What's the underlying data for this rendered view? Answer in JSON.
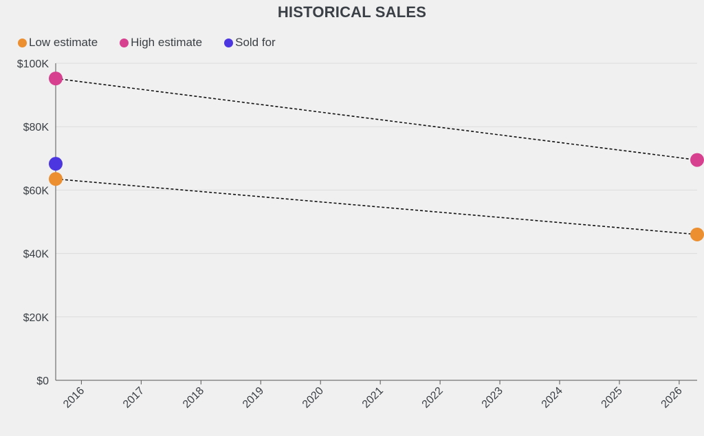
{
  "chart_data": {
    "type": "scatter",
    "title": "HISTORICAL SALES",
    "xlabel": "",
    "ylabel": "",
    "xlim": [
      2015.57,
      2026.3
    ],
    "ylim": [
      0,
      100000
    ],
    "x_ticks": [
      2016,
      2017,
      2018,
      2019,
      2020,
      2021,
      2022,
      2023,
      2024,
      2025,
      2026
    ],
    "x_tick_labels": [
      "2016",
      "2017",
      "2018",
      "2019",
      "2020",
      "2021",
      "2022",
      "2023",
      "2024",
      "2025",
      "2026"
    ],
    "y_ticks": [
      0,
      20000,
      40000,
      60000,
      80000,
      100000
    ],
    "y_tick_labels": [
      "$0",
      "$20K",
      "$40K",
      "$60K",
      "$80K",
      "$100K"
    ],
    "grid": true,
    "legend_position": "top-left",
    "series": [
      {
        "name": "Low estimate",
        "color": "#ec8f30",
        "points": [
          [
            2015.57,
            63500
          ],
          [
            2026.3,
            46000
          ]
        ],
        "dashed_trend": true
      },
      {
        "name": "High estimate",
        "color": "#d6408f",
        "points": [
          [
            2015.57,
            95200
          ],
          [
            2026.3,
            69500
          ]
        ],
        "dashed_trend": true
      },
      {
        "name": "Sold for",
        "color": "#4c36e0",
        "points": [
          [
            2015.57,
            68300
          ]
        ],
        "dashed_trend": false
      }
    ]
  }
}
